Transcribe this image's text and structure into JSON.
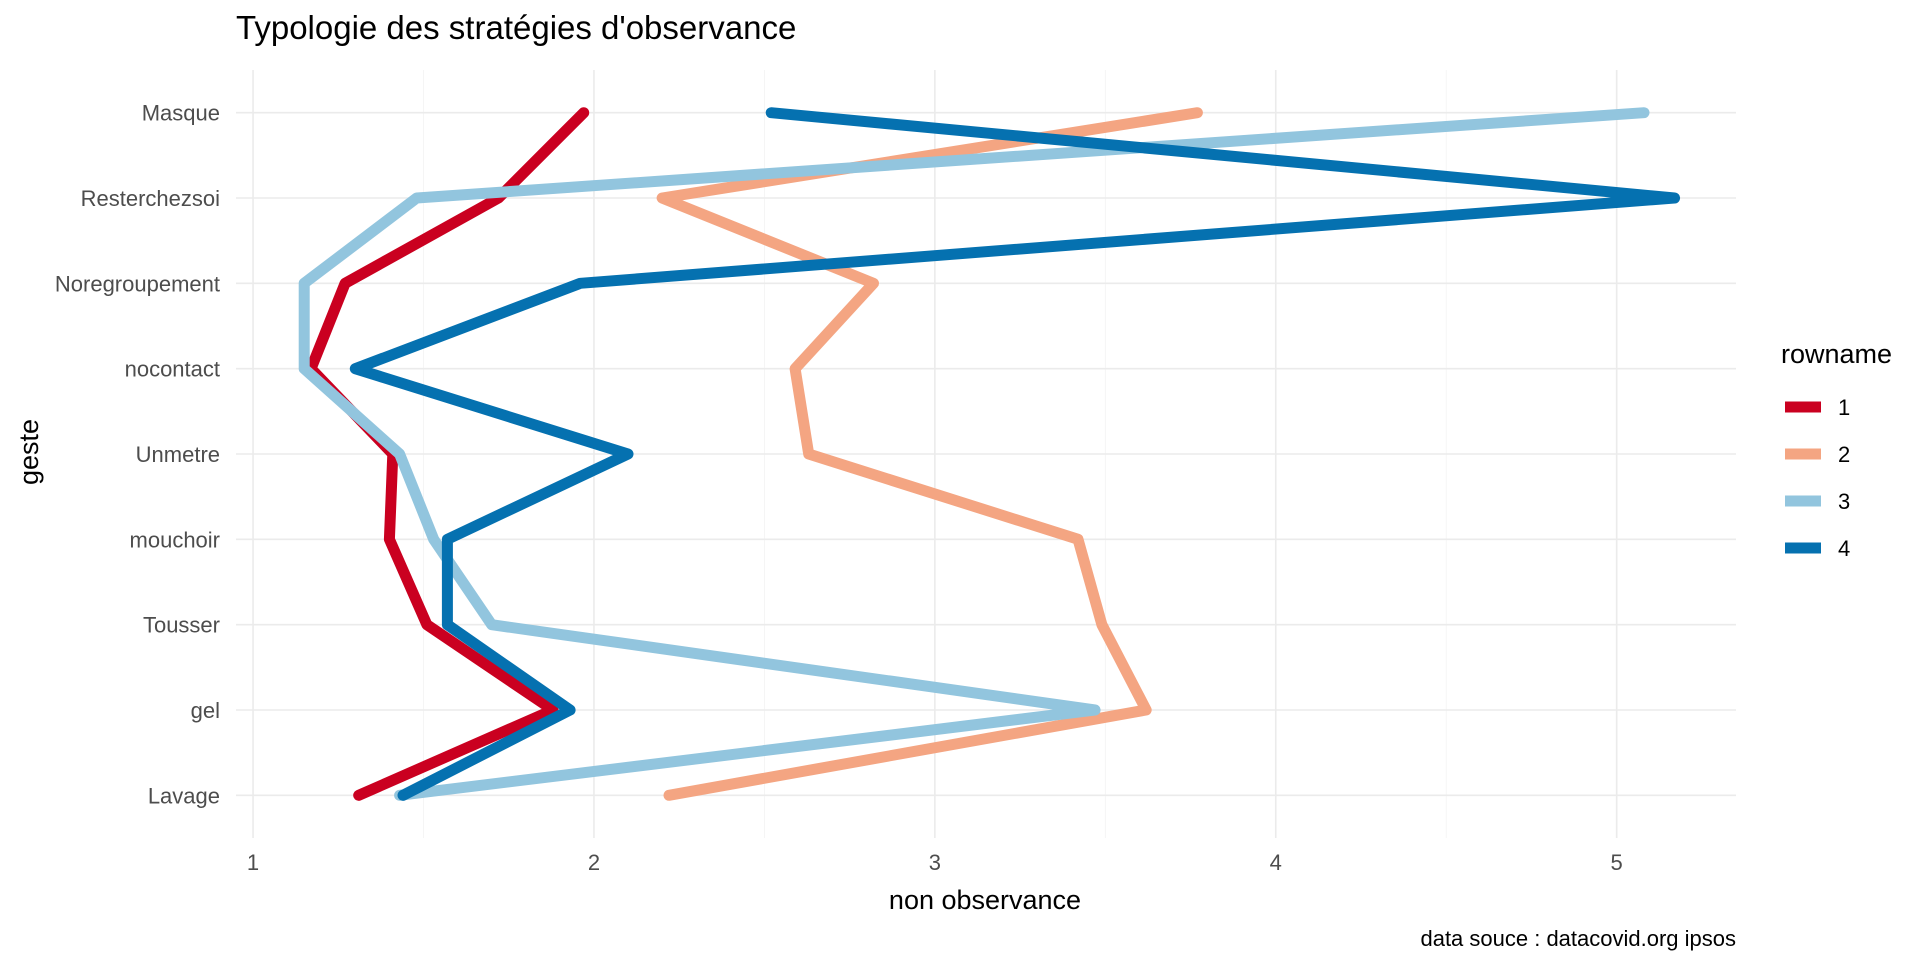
{
  "chart_data": {
    "type": "line",
    "orientation": "horizontal-path",
    "title": "Typologie des stratégies d'observance",
    "xlabel": "non observance",
    "ylabel": "geste",
    "caption": "data souce : datacovid.org ipsos",
    "xlim": [
      0.95,
      5.35
    ],
    "x_ticks": [
      1,
      2,
      3,
      4,
      5
    ],
    "x_minor_ticks": [
      1.5,
      2.5,
      3.5,
      4.5
    ],
    "categories": [
      "Lavage",
      "gel",
      "Tousser",
      "mouchoir",
      "Unmetre",
      "nocontact",
      "Noregroupement",
      "Resterchezsoi",
      "Masque"
    ],
    "grid": true,
    "legend": {
      "title": "rowname",
      "placement": "right"
    },
    "series": [
      {
        "name": "1",
        "color": "#ca0020",
        "values": [
          1.31,
          1.88,
          1.51,
          1.4,
          1.41,
          1.17,
          1.27,
          1.72,
          1.97
        ]
      },
      {
        "name": "2",
        "color": "#f4a582",
        "values": [
          2.22,
          3.62,
          3.49,
          3.42,
          2.63,
          2.59,
          2.82,
          2.2,
          3.77
        ]
      },
      {
        "name": "3",
        "color": "#92c5de",
        "values": [
          1.43,
          3.47,
          1.7,
          1.53,
          1.43,
          1.15,
          1.15,
          1.48,
          5.08
        ]
      },
      {
        "name": "4",
        "color": "#0571b0",
        "values": [
          1.44,
          1.93,
          1.57,
          1.57,
          2.1,
          1.3,
          1.96,
          5.17,
          2.52
        ]
      }
    ]
  }
}
